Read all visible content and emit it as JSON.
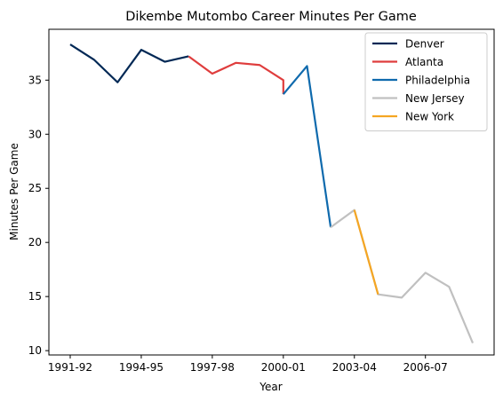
{
  "chart_data": {
    "type": "line",
    "title": "Dikembe Mutombo Career Minutes Per Game",
    "xlabel": "Year",
    "ylabel": "Minutes Per Game",
    "x_categories": [
      "1991-92",
      "1992-93",
      "1993-94",
      "1994-95",
      "1995-96",
      "1996-97",
      "1997-98",
      "1998-99",
      "1999-00",
      "2000-01",
      "2001-02",
      "2002-03",
      "2003-04",
      "2004-05",
      "2005-06",
      "2006-07",
      "2007-08",
      "2008-09"
    ],
    "xtick_labels": [
      "1991-92",
      "1994-95",
      "1997-98",
      "2000-01",
      "2003-04",
      "2006-07"
    ],
    "yticks": [
      10,
      15,
      20,
      25,
      30,
      35
    ],
    "ylim": [
      9.6,
      39.7
    ],
    "legend_position": "upper right",
    "grid": false,
    "series": [
      {
        "name": "Denver",
        "color": "#002855",
        "x": [
          "1991-92",
          "1992-93",
          "1993-94",
          "1994-95",
          "1995-96",
          "1996-97"
        ],
        "y": [
          38.3,
          36.9,
          34.8,
          37.8,
          36.7,
          37.2
        ]
      },
      {
        "name": "Atlanta",
        "color": "#df3d3d",
        "x": [
          "1996-97",
          "1997-98",
          "1998-99",
          "1999-00",
          "2000-01",
          "2000-01"
        ],
        "y": [
          37.2,
          35.6,
          36.6,
          36.4,
          35.0,
          33.7
        ]
      },
      {
        "name": "Philadelphia",
        "color": "#0f6aad",
        "x": [
          "2000-01",
          "2001-02",
          "2002-03"
        ],
        "y": [
          33.7,
          36.3,
          21.4
        ]
      },
      {
        "name": "New Jersey",
        "color": "#c0c0c0",
        "x": [
          "2002-03",
          "2003-04",
          "2004-05",
          "2005-06",
          "2006-07",
          "2007-08",
          "2008-09"
        ],
        "y": [
          21.4,
          23.0,
          15.2,
          14.9,
          17.2,
          15.9,
          10.7
        ]
      },
      {
        "name": "New York",
        "color": "#f5a623",
        "x": [
          "2003-04",
          "2004-05"
        ],
        "y": [
          23.0,
          15.2
        ]
      }
    ]
  }
}
